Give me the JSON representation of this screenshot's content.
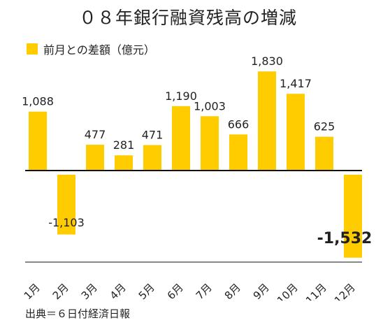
{
  "title": "０８年銀行融資残高の増減",
  "source": "出典＝６日付経済日報",
  "colors": {
    "bar": "#ffcc00",
    "axis": "#111111",
    "text": "#222222"
  },
  "chart_data": {
    "type": "bar",
    "title": "０８年銀行融資残高の増減",
    "categories": [
      "1月",
      "2月",
      "3月",
      "4月",
      "5月",
      "6月",
      "7月",
      "8月",
      "9月",
      "10月",
      "11月",
      "12月"
    ],
    "value_labels": [
      "1,088",
      "-1,103",
      "477",
      "281",
      "471",
      "1,190",
      "1,003",
      "666",
      "1,830",
      "1,417",
      "625",
      "-1,532"
    ],
    "series": [
      {
        "name": "前月との差額（億元）",
        "values": [
          1088,
          -1103,
          477,
          281,
          471,
          1190,
          1003,
          666,
          1830,
          1417,
          625,
          -1532
        ]
      }
    ],
    "legend": "top-left",
    "grid": false,
    "ylim": [
      -1600,
      1850
    ],
    "highlight_index": 11
  }
}
